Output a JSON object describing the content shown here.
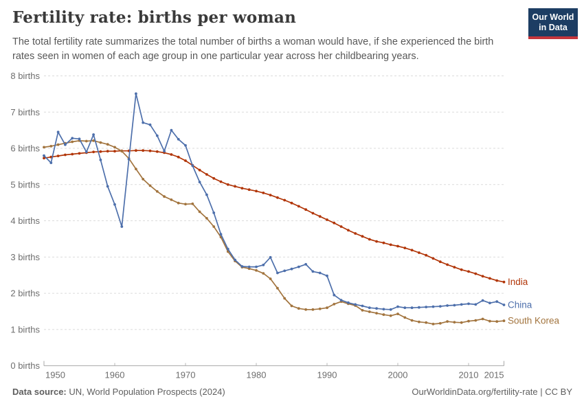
{
  "header": {
    "title": "Fertility rate: births per woman",
    "subtitle": "The total fertility rate summarizes the total number of births a woman would have, if she experienced the birth rates seen in women of each age group in one particular year across her childbearing years.",
    "logo": {
      "line1": "Our World",
      "line2": "in Data"
    }
  },
  "chart_data": {
    "type": "line",
    "title": "Fertility rate: births per woman",
    "xlabel": "",
    "ylabel": "births",
    "xlim": [
      1950,
      2015
    ],
    "ylim": [
      0,
      8
    ],
    "grid": true,
    "x_ticks": [
      1950,
      1960,
      1970,
      1980,
      1990,
      2000,
      2010,
      2015
    ],
    "y_ticks": [
      0,
      1,
      2,
      3,
      4,
      5,
      6,
      7,
      8
    ],
    "y_tick_suffix": " births",
    "legend_position": "right-end-labels",
    "x": [
      1950,
      1951,
      1952,
      1953,
      1954,
      1955,
      1956,
      1957,
      1958,
      1959,
      1960,
      1961,
      1962,
      1963,
      1964,
      1965,
      1966,
      1967,
      1968,
      1969,
      1970,
      1971,
      1972,
      1973,
      1974,
      1975,
      1976,
      1977,
      1978,
      1979,
      1980,
      1981,
      1982,
      1983,
      1984,
      1985,
      1986,
      1987,
      1988,
      1989,
      1990,
      1991,
      1992,
      1993,
      1994,
      1995,
      1996,
      1997,
      1998,
      1999,
      2000,
      2001,
      2002,
      2003,
      2004,
      2005,
      2006,
      2007,
      2008,
      2009,
      2010,
      2011,
      2012,
      2013,
      2014,
      2015
    ],
    "series": [
      {
        "name": "India",
        "color": "#b13507",
        "values": [
          5.73,
          5.76,
          5.79,
          5.82,
          5.84,
          5.86,
          5.88,
          5.9,
          5.91,
          5.92,
          5.92,
          5.93,
          5.93,
          5.94,
          5.94,
          5.93,
          5.91,
          5.88,
          5.83,
          5.76,
          5.66,
          5.53,
          5.4,
          5.28,
          5.17,
          5.08,
          5.0,
          4.95,
          4.9,
          4.86,
          4.82,
          4.77,
          4.71,
          4.64,
          4.57,
          4.49,
          4.4,
          4.31,
          4.21,
          4.12,
          4.03,
          3.94,
          3.84,
          3.74,
          3.65,
          3.57,
          3.49,
          3.43,
          3.39,
          3.34,
          3.3,
          3.25,
          3.19,
          3.12,
          3.05,
          2.96,
          2.87,
          2.79,
          2.72,
          2.65,
          2.6,
          2.54,
          2.47,
          2.41,
          2.35,
          2.31
        ]
      },
      {
        "name": "China",
        "color": "#4d6fab",
        "values": [
          5.8,
          5.6,
          6.45,
          6.1,
          6.28,
          6.26,
          5.9,
          6.38,
          5.68,
          4.95,
          4.45,
          3.84,
          5.7,
          7.51,
          6.71,
          6.65,
          6.35,
          5.92,
          6.5,
          6.25,
          6.08,
          5.52,
          5.07,
          4.72,
          4.22,
          3.63,
          3.22,
          2.92,
          2.74,
          2.73,
          2.73,
          2.78,
          2.99,
          2.56,
          2.62,
          2.67,
          2.73,
          2.8,
          2.6,
          2.56,
          2.48,
          1.95,
          1.81,
          1.74,
          1.69,
          1.65,
          1.6,
          1.58,
          1.56,
          1.55,
          1.63,
          1.6,
          1.6,
          1.61,
          1.62,
          1.63,
          1.64,
          1.66,
          1.67,
          1.69,
          1.71,
          1.69,
          1.8,
          1.73,
          1.77,
          1.68
        ]
      },
      {
        "name": "South Korea",
        "color": "#a2743e",
        "values": [
          6.03,
          6.06,
          6.1,
          6.14,
          6.18,
          6.21,
          6.2,
          6.21,
          6.16,
          6.11,
          6.03,
          5.92,
          5.72,
          5.43,
          5.15,
          4.97,
          4.81,
          4.67,
          4.58,
          4.49,
          4.46,
          4.47,
          4.25,
          4.07,
          3.84,
          3.55,
          3.15,
          2.89,
          2.72,
          2.68,
          2.63,
          2.55,
          2.4,
          2.14,
          1.86,
          1.65,
          1.58,
          1.55,
          1.55,
          1.57,
          1.6,
          1.7,
          1.77,
          1.71,
          1.66,
          1.53,
          1.49,
          1.45,
          1.41,
          1.38,
          1.43,
          1.33,
          1.25,
          1.21,
          1.19,
          1.15,
          1.17,
          1.22,
          1.2,
          1.19,
          1.23,
          1.25,
          1.29,
          1.23,
          1.22,
          1.24
        ]
      }
    ]
  },
  "footer": {
    "source_label": "Data source:",
    "source_text": " UN, World Population Prospects (2024)",
    "link_text": "OurWorldinData.org/fertility-rate",
    "license_text": " | CC BY"
  }
}
